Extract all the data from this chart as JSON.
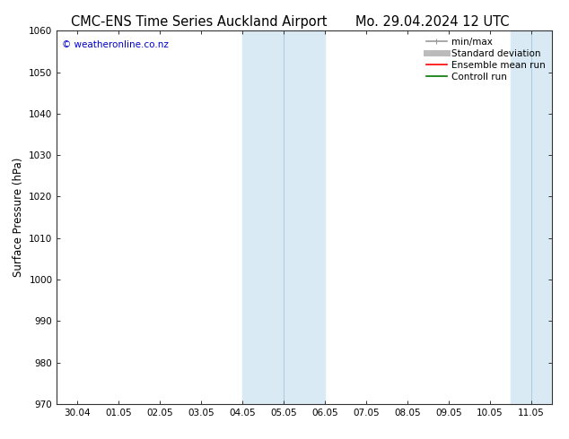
{
  "title_left": "CMC-ENS Time Series Auckland Airport",
  "title_right": "Mo. 29.04.2024 12 UTC",
  "ylabel": "Surface Pressure (hPa)",
  "ylim": [
    970,
    1060
  ],
  "yticks": [
    970,
    980,
    990,
    1000,
    1010,
    1020,
    1030,
    1040,
    1050,
    1060
  ],
  "xlabels": [
    "30.04",
    "01.05",
    "02.05",
    "03.05",
    "04.05",
    "05.05",
    "06.05",
    "07.05",
    "08.05",
    "09.05",
    "10.05",
    "11.05"
  ],
  "xvalues": [
    0,
    1,
    2,
    3,
    4,
    5,
    6,
    7,
    8,
    9,
    10,
    11
  ],
  "xlim": [
    -0.5,
    11.5
  ],
  "shaded_bands": [
    {
      "xmin": 4.0,
      "xmax": 5.0,
      "color": "#daeaf5"
    },
    {
      "xmin": 5.0,
      "xmax": 6.0,
      "color": "#daeaf5"
    },
    {
      "xmin": 10.5,
      "xmax": 11.0,
      "color": "#daeaf5"
    },
    {
      "xmin": 11.0,
      "xmax": 11.5,
      "color": "#daeaf5"
    }
  ],
  "band_dividers": [
    5.0,
    11.0
  ],
  "legend_items": [
    {
      "label": "min/max",
      "color": "#999999",
      "lw": 1.2,
      "style": "caps"
    },
    {
      "label": "Standard deviation",
      "color": "#bbbbbb",
      "lw": 5,
      "style": "line"
    },
    {
      "label": "Ensemble mean run",
      "color": "#ff0000",
      "lw": 1.2,
      "style": "line"
    },
    {
      "label": "Controll run",
      "color": "#007700",
      "lw": 1.2,
      "style": "line"
    }
  ],
  "copyright_text": "© weatheronline.co.nz",
  "copyright_color": "#0000cc",
  "background_color": "#ffffff",
  "plot_bg_color": "#ffffff",
  "spine_color": "#333333",
  "title_fontsize": 10.5,
  "tick_fontsize": 7.5,
  "ylabel_fontsize": 8.5,
  "legend_fontsize": 7.5,
  "copyright_fontsize": 7.5
}
